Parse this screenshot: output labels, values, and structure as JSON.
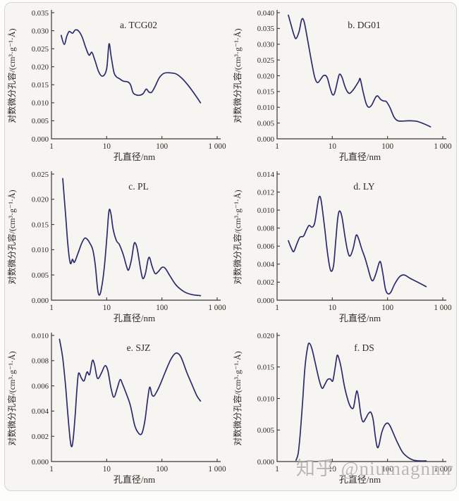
{
  "figure": {
    "watermark": "知乎 @niumagnmr",
    "line_color": "#2a2a6e",
    "axis_color": "#3c3832",
    "text_color": "#2e2a26",
    "card_background": "#f7f5f1",
    "card_border_color": "#d8d5cf"
  },
  "chart_data": [
    {
      "type": "line",
      "title": "a. TCG02",
      "xlabel": "孔直径/nm",
      "ylabel": "对数微分孔容/(cm³·g⁻¹·Å)",
      "xscale": "log",
      "xlim": [
        1,
        1000
      ],
      "xtick_values": [
        1,
        10,
        100,
        1000
      ],
      "xtick_labels": [
        "1",
        "10",
        "100",
        "1 000"
      ],
      "ylim": [
        0,
        0.035
      ],
      "ytick_step": 0.005,
      "y_decimals": 3,
      "points": [
        [
          1.5,
          0.0287
        ],
        [
          1.7,
          0.0262
        ],
        [
          1.9,
          0.0285
        ],
        [
          2.1,
          0.0298
        ],
        [
          2.4,
          0.0293
        ],
        [
          2.7,
          0.0302
        ],
        [
          3.1,
          0.0299
        ],
        [
          3.6,
          0.0282
        ],
        [
          4.2,
          0.0252
        ],
        [
          4.8,
          0.0232
        ],
        [
          5.4,
          0.024
        ],
        [
          6.2,
          0.0215
        ],
        [
          7.2,
          0.0185
        ],
        [
          8.5,
          0.0174
        ],
        [
          10,
          0.0195
        ],
        [
          11,
          0.0263
        ],
        [
          12,
          0.023
        ],
        [
          13.5,
          0.0185
        ],
        [
          15,
          0.0172
        ],
        [
          17,
          0.0167
        ],
        [
          20,
          0.016
        ],
        [
          24,
          0.0158
        ],
        [
          27,
          0.015
        ],
        [
          30,
          0.0128
        ],
        [
          34,
          0.0122
        ],
        [
          40,
          0.0121
        ],
        [
          46,
          0.0126
        ],
        [
          52,
          0.0138
        ],
        [
          58,
          0.013
        ],
        [
          65,
          0.0129
        ],
        [
          75,
          0.0145
        ],
        [
          90,
          0.017
        ],
        [
          110,
          0.0182
        ],
        [
          140,
          0.0183
        ],
        [
          180,
          0.018
        ],
        [
          230,
          0.0168
        ],
        [
          300,
          0.0148
        ],
        [
          400,
          0.0122
        ],
        [
          500,
          0.01
        ]
      ]
    },
    {
      "type": "line",
      "title": "b. DG01",
      "xlabel": "孔直径/nm",
      "ylabel": "对数微分孔容/(cm³·g⁻¹·Å)",
      "xscale": "log",
      "xlim": [
        1,
        1000
      ],
      "xtick_values": [
        1,
        10,
        100,
        1000
      ],
      "xtick_labels": [
        "1",
        "10",
        "100",
        "1 000"
      ],
      "ylim": [
        0,
        0.04
      ],
      "ytick_step": 0.005,
      "y_decimals": 3,
      "points": [
        [
          1.6,
          0.0392
        ],
        [
          1.8,
          0.036
        ],
        [
          2.0,
          0.0332
        ],
        [
          2.2,
          0.0318
        ],
        [
          2.5,
          0.034
        ],
        [
          2.8,
          0.0379
        ],
        [
          3.1,
          0.037
        ],
        [
          3.6,
          0.031
        ],
        [
          4.2,
          0.0245
        ],
        [
          4.8,
          0.0195
        ],
        [
          5.4,
          0.0178
        ],
        [
          6.2,
          0.019
        ],
        [
          7.0,
          0.0201
        ],
        [
          8.0,
          0.0196
        ],
        [
          9.0,
          0.0165
        ],
        [
          10,
          0.0141
        ],
        [
          11,
          0.0145
        ],
        [
          12.5,
          0.0185
        ],
        [
          13.5,
          0.0205
        ],
        [
          15,
          0.0195
        ],
        [
          17,
          0.0165
        ],
        [
          19,
          0.0148
        ],
        [
          21,
          0.0145
        ],
        [
          25,
          0.016
        ],
        [
          30,
          0.0182
        ],
        [
          32,
          0.019
        ],
        [
          36,
          0.015
        ],
        [
          41,
          0.0112
        ],
        [
          46,
          0.01
        ],
        [
          52,
          0.0108
        ],
        [
          60,
          0.013
        ],
        [
          66,
          0.0136
        ],
        [
          75,
          0.0125
        ],
        [
          85,
          0.012
        ],
        [
          95,
          0.0118
        ],
        [
          110,
          0.01
        ],
        [
          130,
          0.007
        ],
        [
          150,
          0.0058
        ],
        [
          180,
          0.0056
        ],
        [
          220,
          0.0057
        ],
        [
          280,
          0.0057
        ],
        [
          350,
          0.0055
        ],
        [
          450,
          0.0048
        ],
        [
          600,
          0.0038
        ]
      ]
    },
    {
      "type": "line",
      "title": "c. PL",
      "xlabel": "孔直径/nm",
      "ylabel": "对数微分孔容/(cm³·g⁻¹·Å)",
      "xscale": "log",
      "xlim": [
        1,
        1000
      ],
      "xtick_values": [
        1,
        10,
        100,
        1000
      ],
      "xtick_labels": [
        "1",
        "10",
        "100",
        "1 000"
      ],
      "ylim": [
        0,
        0.025
      ],
      "ytick_step": 0.005,
      "y_decimals": 3,
      "points": [
        [
          1.6,
          0.0241
        ],
        [
          1.8,
          0.017
        ],
        [
          2.0,
          0.0105
        ],
        [
          2.2,
          0.0073
        ],
        [
          2.4,
          0.0081
        ],
        [
          2.6,
          0.0075
        ],
        [
          3.0,
          0.0092
        ],
        [
          3.5,
          0.0112
        ],
        [
          4.0,
          0.0123
        ],
        [
          4.5,
          0.012
        ],
        [
          5.0,
          0.0112
        ],
        [
          5.6,
          0.01
        ],
        [
          6.2,
          0.007
        ],
        [
          6.8,
          0.0025
        ],
        [
          7.3,
          0.001
        ],
        [
          8.0,
          0.0022
        ],
        [
          9.0,
          0.0062
        ],
        [
          10,
          0.012
        ],
        [
          11,
          0.0177
        ],
        [
          12,
          0.017
        ],
        [
          13,
          0.0142
        ],
        [
          15,
          0.0118
        ],
        [
          17,
          0.011
        ],
        [
          20,
          0.009
        ],
        [
          23,
          0.0066
        ],
        [
          25,
          0.006
        ],
        [
          28,
          0.008
        ],
        [
          31,
          0.011
        ],
        [
          33,
          0.0113
        ],
        [
          36,
          0.01
        ],
        [
          41,
          0.0062
        ],
        [
          45,
          0.0043
        ],
        [
          50,
          0.0052
        ],
        [
          56,
          0.008
        ],
        [
          60,
          0.0084
        ],
        [
          66,
          0.0068
        ],
        [
          75,
          0.0053
        ],
        [
          85,
          0.0056
        ],
        [
          100,
          0.0065
        ],
        [
          115,
          0.0063
        ],
        [
          140,
          0.0048
        ],
        [
          180,
          0.003
        ],
        [
          250,
          0.0017
        ],
        [
          350,
          0.0011
        ],
        [
          500,
          0.0009
        ]
      ]
    },
    {
      "type": "line",
      "title": "d. LY",
      "xlabel": "孔直径/nm",
      "ylabel": "对数微分孔容/(cm³·g⁻¹·Å)",
      "xscale": "log",
      "xlim": [
        1,
        1000
      ],
      "xtick_values": [
        1,
        10,
        100,
        1000
      ],
      "xtick_labels": [
        "1",
        "10",
        "100",
        "1 000"
      ],
      "ylim": [
        0,
        0.014
      ],
      "ytick_step": 0.002,
      "y_decimals": 3,
      "points": [
        [
          1.6,
          0.0066
        ],
        [
          1.8,
          0.0058
        ],
        [
          2.0,
          0.0054
        ],
        [
          2.3,
          0.0063
        ],
        [
          2.6,
          0.007
        ],
        [
          3.0,
          0.0071
        ],
        [
          3.4,
          0.0078
        ],
        [
          3.8,
          0.0083
        ],
        [
          4.3,
          0.0081
        ],
        [
          4.8,
          0.0086
        ],
        [
          5.4,
          0.0106
        ],
        [
          5.8,
          0.0115
        ],
        [
          6.3,
          0.011
        ],
        [
          7.2,
          0.0082
        ],
        [
          8.2,
          0.0052
        ],
        [
          9.3,
          0.0033
        ],
        [
          10.5,
          0.0038
        ],
        [
          11.5,
          0.0065
        ],
        [
          12.5,
          0.009
        ],
        [
          13.5,
          0.0099
        ],
        [
          15,
          0.0092
        ],
        [
          17,
          0.007
        ],
        [
          19,
          0.0054
        ],
        [
          21,
          0.0049
        ],
        [
          24,
          0.0058
        ],
        [
          27,
          0.0072
        ],
        [
          30,
          0.0068
        ],
        [
          34,
          0.0057
        ],
        [
          39,
          0.0047
        ],
        [
          44,
          0.0036
        ],
        [
          50,
          0.0024
        ],
        [
          55,
          0.0022
        ],
        [
          62,
          0.003
        ],
        [
          70,
          0.0041
        ],
        [
          75,
          0.0042
        ],
        [
          82,
          0.003
        ],
        [
          92,
          0.0012
        ],
        [
          103,
          0.0007
        ],
        [
          115,
          0.0009
        ],
        [
          135,
          0.0018
        ],
        [
          165,
          0.0026
        ],
        [
          200,
          0.0028
        ],
        [
          260,
          0.0024
        ],
        [
          350,
          0.002
        ],
        [
          500,
          0.0015
        ]
      ]
    },
    {
      "type": "line",
      "title": "e. SJZ",
      "xlabel": "孔直径/nm",
      "ylabel": "对数微分孔容/(cm³·g⁻¹·Å)",
      "xscale": "log",
      "xlim": [
        1,
        1000
      ],
      "xtick_values": [
        1,
        10,
        100,
        1000
      ],
      "xtick_labels": [
        "1",
        "10",
        "100",
        "1 000"
      ],
      "ylim": [
        0,
        0.01
      ],
      "ytick_step": 0.002,
      "y_decimals": 3,
      "points": [
        [
          1.4,
          0.0097
        ],
        [
          1.6,
          0.0082
        ],
        [
          1.8,
          0.006
        ],
        [
          2.0,
          0.0035
        ],
        [
          2.2,
          0.0016
        ],
        [
          2.35,
          0.0012
        ],
        [
          2.5,
          0.002
        ],
        [
          2.7,
          0.0038
        ],
        [
          2.9,
          0.0058
        ],
        [
          3.1,
          0.007
        ],
        [
          3.5,
          0.0066
        ],
        [
          3.9,
          0.0064
        ],
        [
          4.4,
          0.0071
        ],
        [
          4.9,
          0.0069
        ],
        [
          5.5,
          0.008
        ],
        [
          6.0,
          0.0077
        ],
        [
          6.8,
          0.0066
        ],
        [
          8.0,
          0.007
        ],
        [
          9.3,
          0.0076
        ],
        [
          10.5,
          0.0072
        ],
        [
          12,
          0.0058
        ],
        [
          13.5,
          0.0051
        ],
        [
          15.5,
          0.0058
        ],
        [
          17.5,
          0.0065
        ],
        [
          19.5,
          0.0061
        ],
        [
          23,
          0.0053
        ],
        [
          27,
          0.0044
        ],
        [
          32,
          0.0029
        ],
        [
          37,
          0.0023
        ],
        [
          43,
          0.0022
        ],
        [
          49,
          0.0032
        ],
        [
          55,
          0.0049
        ],
        [
          60,
          0.0059
        ],
        [
          66,
          0.0053
        ],
        [
          72,
          0.0052
        ],
        [
          82,
          0.0056
        ],
        [
          95,
          0.0062
        ],
        [
          115,
          0.0071
        ],
        [
          145,
          0.0081
        ],
        [
          180,
          0.0086
        ],
        [
          220,
          0.0083
        ],
        [
          280,
          0.0071
        ],
        [
          350,
          0.0061
        ],
        [
          430,
          0.0052
        ],
        [
          500,
          0.0048
        ]
      ]
    },
    {
      "type": "line",
      "title": "f. DS",
      "xlabel": "孔直径/nm",
      "ylabel": "对数微分孔容/(cm³·g⁻¹·Å)",
      "xscale": "log",
      "xlim": [
        1,
        1000
      ],
      "xtick_values": [
        1,
        10,
        100,
        1000
      ],
      "xtick_labels": [
        "1",
        "10",
        "100",
        "1 000"
      ],
      "ylim": [
        0,
        0.02
      ],
      "ytick_step": 0.005,
      "y_decimals": 3,
      "points": [
        [
          2.2,
          0.0002
        ],
        [
          2.4,
          0.0012
        ],
        [
          2.6,
          0.004
        ],
        [
          2.9,
          0.0095
        ],
        [
          3.2,
          0.015
        ],
        [
          3.6,
          0.0183
        ],
        [
          3.9,
          0.0187
        ],
        [
          4.3,
          0.0178
        ],
        [
          4.8,
          0.016
        ],
        [
          5.4,
          0.014
        ],
        [
          6.0,
          0.0124
        ],
        [
          6.6,
          0.0116
        ],
        [
          7.3,
          0.0122
        ],
        [
          8.2,
          0.013
        ],
        [
          9.2,
          0.0131
        ],
        [
          10.2,
          0.0128
        ],
        [
          11.2,
          0.0148
        ],
        [
          12.2,
          0.0168
        ],
        [
          13.2,
          0.0163
        ],
        [
          14.5,
          0.0148
        ],
        [
          16.5,
          0.012
        ],
        [
          18.5,
          0.0102
        ],
        [
          21,
          0.0088
        ],
        [
          24,
          0.0085
        ],
        [
          26.5,
          0.0105
        ],
        [
          28,
          0.0112
        ],
        [
          30,
          0.01
        ],
        [
          33,
          0.0073
        ],
        [
          36,
          0.0063
        ],
        [
          40,
          0.0068
        ],
        [
          45,
          0.0076
        ],
        [
          50,
          0.0078
        ],
        [
          55,
          0.0066
        ],
        [
          60,
          0.004
        ],
        [
          65,
          0.0023
        ],
        [
          70,
          0.0026
        ],
        [
          78,
          0.0045
        ],
        [
          88,
          0.0057
        ],
        [
          100,
          0.0061
        ],
        [
          112,
          0.0056
        ],
        [
          130,
          0.0043
        ],
        [
          155,
          0.0028
        ],
        [
          190,
          0.0014
        ],
        [
          240,
          0.0006
        ],
        [
          300,
          0.0002
        ],
        [
          400,
          0.0001
        ],
        [
          500,
          0.0001
        ]
      ]
    }
  ]
}
